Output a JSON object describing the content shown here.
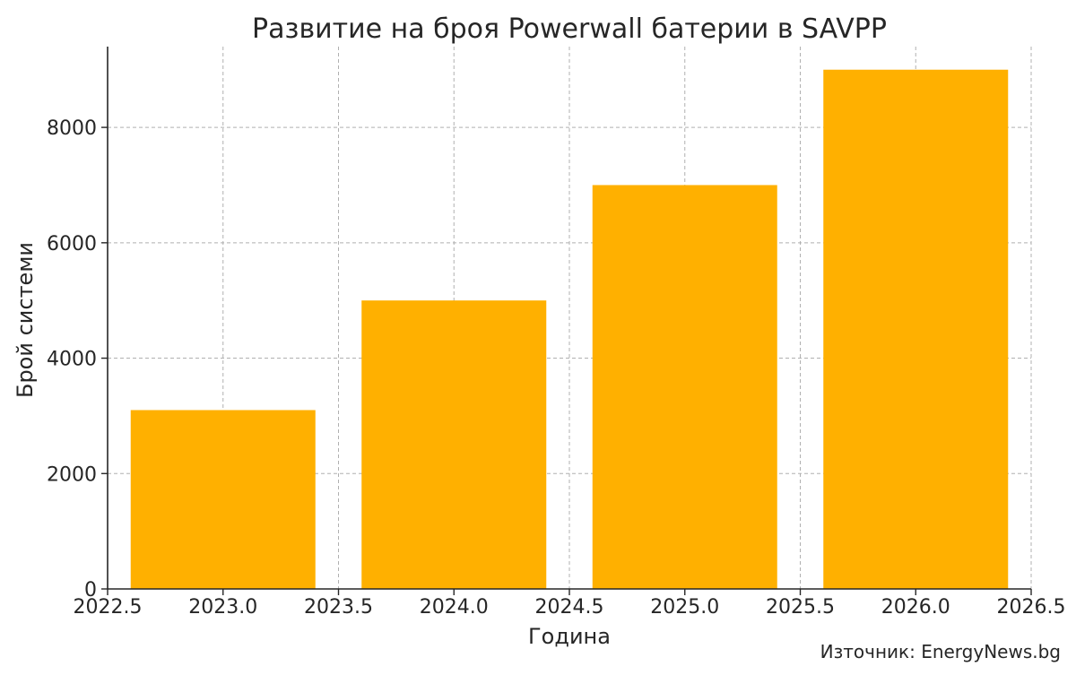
{
  "chart_data": {
    "type": "bar",
    "title": "Развитие на броя Powerwall батерии в SAVPP",
    "xlabel": "Година",
    "ylabel": "Брой системи",
    "x": [
      2023,
      2024,
      2025,
      2026
    ],
    "values": [
      3100,
      5000,
      7000,
      9000
    ],
    "bar_color": "#FFB000",
    "xlim": [
      2022.5,
      2026.5
    ],
    "ylim": [
      0,
      9400
    ],
    "x_ticks": [
      "2022.5",
      "2023.0",
      "2023.5",
      "2024.0",
      "2024.5",
      "2025.0",
      "2025.5",
      "2026.0",
      "2026.5"
    ],
    "y_ticks": [
      "0",
      "2000",
      "4000",
      "6000",
      "8000"
    ],
    "grid": true
  },
  "source_note": "Източник: EnergyNews.bg"
}
